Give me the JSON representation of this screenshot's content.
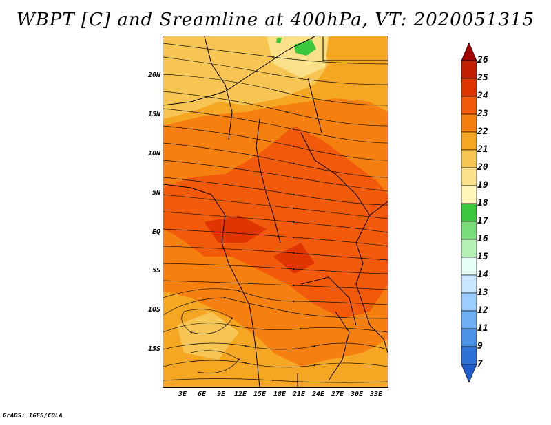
{
  "title": "WBPT [C] and Sreamline at 400hPa, VT: 2020051315",
  "footer": "GrADS: IGES/COLA",
  "map": {
    "lat_labels": [
      "20N",
      "15N",
      "10N",
      "5N",
      "EQ",
      "5S",
      "10S",
      "15S"
    ],
    "lon_labels": [
      "3E",
      "6E",
      "9E",
      "12E",
      "15E",
      "18E",
      "21E",
      "24E",
      "27E",
      "30E",
      "33E"
    ]
  },
  "colorbar": {
    "labels": [
      "26",
      "25",
      "24",
      "23",
      "22",
      "21",
      "20",
      "19",
      "18",
      "17",
      "16",
      "15",
      "14",
      "13",
      "12",
      "11",
      "9",
      "7"
    ],
    "colors": [
      "#a50000",
      "#c21f00",
      "#e03500",
      "#f05a0a",
      "#f5800f",
      "#f5a623",
      "#f7c553",
      "#fbe08a",
      "#fff5b8",
      "#3cc83c",
      "#78dc78",
      "#b4f0b4",
      "#e6fff5",
      "#c8e6ff",
      "#9bcdff",
      "#6eaff5",
      "#4b91e6",
      "#2d73d7",
      "#1e5ac8"
    ]
  },
  "colors": {
    "ocean": "#f5a623",
    "land_mid": "#f5800f",
    "land_hot": "#f05a0a",
    "green_patch": "#3cc83c"
  }
}
